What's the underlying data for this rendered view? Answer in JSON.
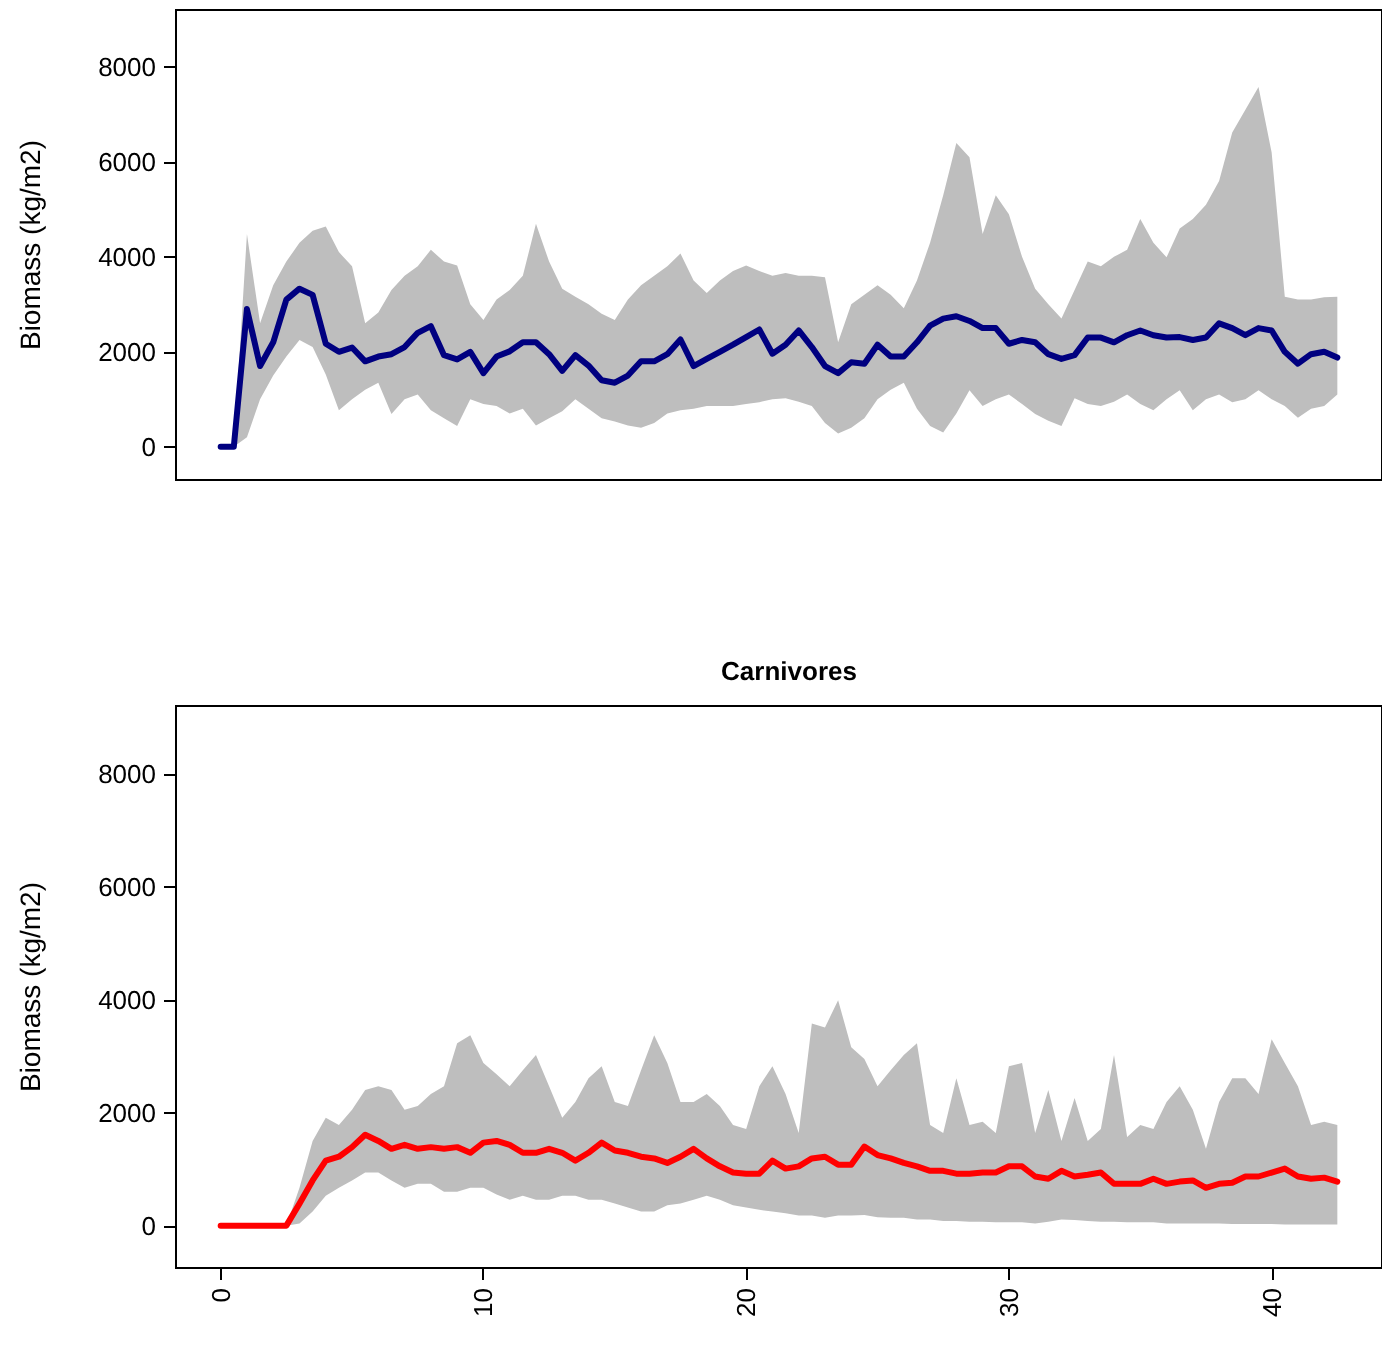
{
  "chart_data": [
    {
      "type": "line",
      "ylabel": "Biomass (kg/m2)",
      "xlim": [
        -1.7,
        44.2
      ],
      "ylim": [
        -700,
        9200
      ],
      "yticks": [
        0,
        2000,
        4000,
        6000,
        8000
      ],
      "tick_labels": "y",
      "x": [
        0,
        0.5,
        1,
        1.5,
        2,
        2.5,
        3,
        3.5,
        4,
        4.5,
        5,
        5.5,
        6,
        6.5,
        7,
        7.5,
        8,
        8.5,
        9,
        9.5,
        10,
        10.5,
        11,
        11.5,
        12,
        12.5,
        13,
        13.5,
        14,
        14.5,
        15,
        15.5,
        16,
        16.5,
        17,
        17.5,
        18,
        18.5,
        19,
        19.5,
        20,
        20.5,
        21,
        21.5,
        22,
        22.5,
        23,
        23.5,
        24,
        24.5,
        25,
        25.5,
        26,
        26.5,
        27,
        27.5,
        28,
        28.5,
        29,
        29.5,
        30,
        30.5,
        31,
        31.5,
        32,
        32.5,
        33,
        33.5,
        34,
        34.5,
        35,
        35.5,
        36,
        36.5,
        37,
        37.5,
        38,
        38.5,
        39,
        39.5,
        40,
        40.5,
        41,
        41.5,
        42,
        42.5
      ],
      "series": [
        {
          "color": "#000080",
          "values": [
            0,
            0,
            2900,
            1700,
            2200,
            3100,
            3330,
            3200,
            2170,
            2000,
            2090,
            1800,
            1900,
            1950,
            2100,
            2400,
            2540,
            1930,
            1840,
            2000,
            1550,
            1900,
            2010,
            2200,
            2200,
            1950,
            1600,
            1930,
            1710,
            1400,
            1350,
            1500,
            1800,
            1800,
            1950,
            2260,
            1700,
            1850,
            2000,
            2150,
            2310,
            2470,
            1960,
            2150,
            2450,
            2100,
            1700,
            1550,
            1780,
            1750,
            2150,
            1900,
            1900,
            2200,
            2550,
            2700,
            2750,
            2650,
            2500,
            2500,
            2170,
            2250,
            2200,
            1950,
            1850,
            1930,
            2300,
            2300,
            2200,
            2350,
            2450,
            2350,
            2300,
            2310,
            2250,
            2300,
            2600,
            2500,
            2350,
            2500,
            2450,
            2000,
            1750,
            1950,
            2000,
            1880
          ],
          "lower": [
            0,
            0,
            200,
            1000,
            1500,
            1900,
            2250,
            2100,
            1520,
            770,
            1000,
            1200,
            1350,
            690,
            1000,
            1100,
            770,
            600,
            440,
            1000,
            900,
            860,
            700,
            800,
            450,
            600,
            750,
            1000,
            800,
            600,
            530,
            450,
            400,
            500,
            700,
            770,
            800,
            860,
            860,
            860,
            900,
            940,
            1000,
            1020,
            950,
            860,
            500,
            280,
            400,
            600,
            1000,
            1200,
            1350,
            800,
            440,
            300,
            700,
            1190,
            860,
            1000,
            1100,
            900,
            690,
            550,
            440,
            1020,
            900,
            860,
            950,
            1100,
            900,
            770,
            1000,
            1190,
            770,
            1000,
            1100,
            940,
            1000,
            1190,
            1000,
            860,
            610,
            800,
            860,
            1100
          ],
          "upper": [
            0,
            0,
            4480,
            2600,
            3400,
            3900,
            4300,
            4550,
            4640,
            4100,
            3800,
            2600,
            2830,
            3300,
            3600,
            3800,
            4150,
            3900,
            3820,
            3000,
            2670,
            3100,
            3300,
            3600,
            4700,
            3900,
            3330,
            3160,
            3000,
            2800,
            2670,
            3100,
            3400,
            3600,
            3800,
            4070,
            3500,
            3240,
            3500,
            3700,
            3820,
            3700,
            3600,
            3660,
            3600,
            3600,
            3570,
            2200,
            3000,
            3200,
            3400,
            3200,
            2920,
            3500,
            4300,
            5300,
            6400,
            6100,
            4480,
            5300,
            4900,
            4000,
            3330,
            3000,
            2700,
            3300,
            3900,
            3800,
            4000,
            4150,
            4800,
            4300,
            3990,
            4600,
            4800,
            5100,
            5600,
            6620,
            7100,
            7580,
            6200,
            3160,
            3100,
            3100,
            3150,
            3160
          ]
        }
      ]
    },
    {
      "type": "line",
      "title": "Carnivores",
      "ylabel": "Biomass (kg/m2)",
      "xlim": [
        -1.7,
        44.2
      ],
      "xticks": [
        0,
        10,
        20,
        30,
        40
      ],
      "ylim": [
        -750,
        9200
      ],
      "yticks": [
        0,
        2000,
        4000,
        6000,
        8000
      ],
      "x": [
        0,
        0.5,
        1,
        1.5,
        2,
        2.5,
        3,
        3.5,
        4,
        4.5,
        5,
        5.5,
        6,
        6.5,
        7,
        7.5,
        8,
        8.5,
        9,
        9.5,
        10,
        10.5,
        11,
        11.5,
        12,
        12.5,
        13,
        13.5,
        14,
        14.5,
        15,
        15.5,
        16,
        16.5,
        17,
        17.5,
        18,
        18.5,
        19,
        19.5,
        20,
        20.5,
        21,
        21.5,
        22,
        22.5,
        23,
        23.5,
        24,
        24.5,
        25,
        25.5,
        26,
        26.5,
        27,
        27.5,
        28,
        28.5,
        29,
        29.5,
        30,
        30.5,
        31,
        31.5,
        32,
        32.5,
        33,
        33.5,
        34,
        34.5,
        35,
        35.5,
        36,
        36.5,
        37,
        37.5,
        38,
        38.5,
        39,
        39.5,
        40,
        40.5,
        41,
        41.5,
        42,
        42.5
      ],
      "series": [
        {
          "color": "#ff0000",
          "values": [
            0,
            0,
            0,
            0,
            0,
            0,
            390,
            800,
            1150,
            1220,
            1390,
            1610,
            1500,
            1360,
            1430,
            1360,
            1390,
            1360,
            1390,
            1290,
            1470,
            1500,
            1430,
            1290,
            1290,
            1360,
            1290,
            1150,
            1290,
            1470,
            1330,
            1290,
            1220,
            1190,
            1110,
            1220,
            1360,
            1190,
            1050,
            940,
            920,
            920,
            1150,
            1010,
            1050,
            1190,
            1220,
            1080,
            1080,
            1400,
            1250,
            1190,
            1110,
            1050,
            970,
            970,
            920,
            920,
            940,
            940,
            1050,
            1050,
            870,
            830,
            970,
            870,
            900,
            940,
            740,
            740,
            740,
            830,
            740,
            780,
            800,
            670,
            740,
            760,
            870,
            870,
            940,
            1010,
            870,
            830,
            850,
            780
          ],
          "lower": [
            0,
            0,
            0,
            0,
            0,
            0,
            40,
            250,
            530,
            670,
            800,
            940,
            940,
            800,
            670,
            740,
            740,
            600,
            600,
            670,
            670,
            550,
            460,
            530,
            460,
            460,
            530,
            530,
            460,
            460,
            390,
            320,
            250,
            250,
            360,
            390,
            460,
            530,
            460,
            360,
            320,
            280,
            250,
            220,
            180,
            180,
            140,
            180,
            180,
            190,
            150,
            140,
            140,
            110,
            110,
            80,
            80,
            70,
            70,
            60,
            60,
            60,
            40,
            70,
            110,
            100,
            80,
            70,
            70,
            60,
            60,
            60,
            40,
            40,
            40,
            40,
            40,
            30,
            30,
            30,
            30,
            20,
            20,
            20,
            20,
            20
          ],
          "upper": [
            0,
            0,
            0,
            0,
            0,
            0,
            670,
            1500,
            1910,
            1780,
            2050,
            2400,
            2470,
            2400,
            2050,
            2120,
            2330,
            2470,
            3230,
            3370,
            2880,
            2680,
            2470,
            2750,
            3020,
            2470,
            1910,
            2190,
            2610,
            2820,
            2190,
            2120,
            2750,
            3370,
            2880,
            2190,
            2190,
            2330,
            2120,
            1780,
            1710,
            2470,
            2820,
            2330,
            1640,
            3580,
            3510,
            3990,
            3160,
            2950,
            2470,
            2750,
            3020,
            3230,
            1780,
            1640,
            2610,
            1780,
            1840,
            1640,
            2820,
            2880,
            1640,
            2400,
            1500,
            2260,
            1500,
            1710,
            3020,
            1570,
            1780,
            1710,
            2190,
            2470,
            2050,
            1360,
            2190,
            2610,
            2610,
            2330,
            3300,
            2880,
            2470,
            1780,
            1840,
            1780
          ]
        }
      ]
    }
  ]
}
